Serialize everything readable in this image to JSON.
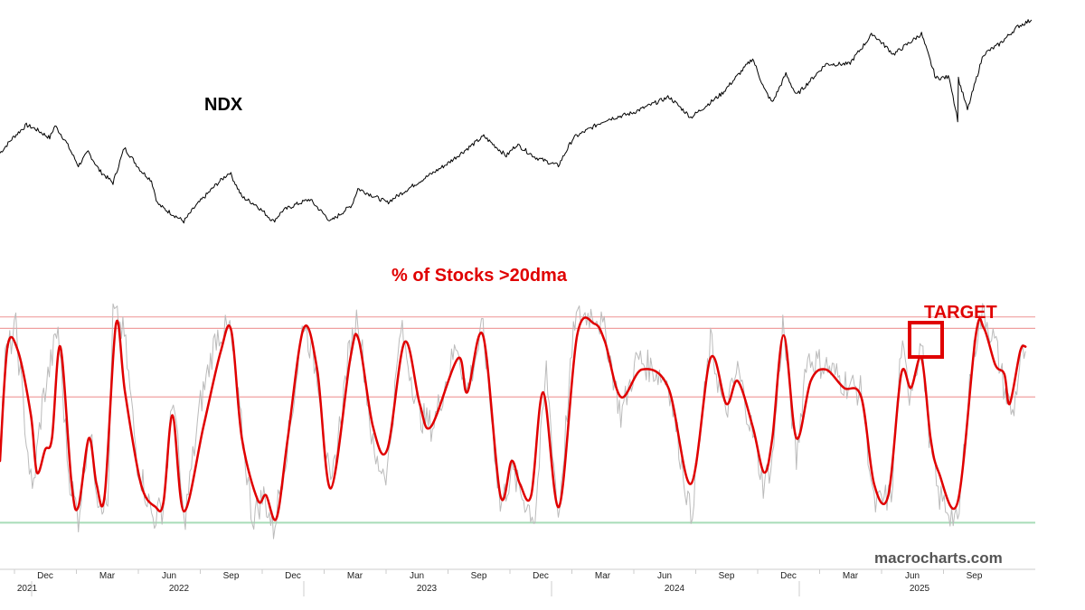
{
  "watermark": "macrocharts.com",
  "chart_data": [
    {
      "type": "line",
      "title": "NDX",
      "x_range": [
        "2021-10-15",
        "2025-07-20"
      ],
      "series": [
        {
          "name": "NDX",
          "color": "#000000",
          "points": [
            [
              "2021-10-15",
              14870
            ],
            [
              "2021-11-01",
              15800
            ],
            [
              "2021-11-19",
              16580
            ],
            [
              "2021-12-01",
              16350
            ],
            [
              "2021-12-20",
              15800
            ],
            [
              "2021-12-27",
              16550
            ],
            [
              "2022-01-10",
              15600
            ],
            [
              "2022-01-27",
              14100
            ],
            [
              "2022-02-09",
              14950
            ],
            [
              "2022-02-24",
              13800
            ],
            [
              "2022-03-14",
              13050
            ],
            [
              "2022-03-29",
              15200
            ],
            [
              "2022-04-20",
              13800
            ],
            [
              "2022-05-04",
              13200
            ],
            [
              "2022-05-12",
              11800
            ],
            [
              "2022-05-20",
              11500
            ],
            [
              "2022-06-16",
              10700
            ],
            [
              "2022-07-01",
              11600
            ],
            [
              "2022-07-29",
              12950
            ],
            [
              "2022-08-16",
              13700
            ],
            [
              "2022-09-01",
              12200
            ],
            [
              "2022-09-20",
              11700
            ],
            [
              "2022-10-13",
              10700
            ],
            [
              "2022-10-25",
              11350
            ],
            [
              "2022-11-10",
              11700
            ],
            [
              "2022-11-30",
              12050
            ],
            [
              "2022-12-28",
              10700
            ],
            [
              "2023-01-25",
              11700
            ],
            [
              "2023-02-02",
              12700
            ],
            [
              "2023-03-13",
              11850
            ],
            [
              "2023-04-20",
              13000
            ],
            [
              "2023-05-31",
              14200
            ],
            [
              "2023-07-19",
              15900
            ],
            [
              "2023-08-18",
              14700
            ],
            [
              "2023-09-01",
              15400
            ],
            [
              "2023-09-26",
              14600
            ],
            [
              "2023-10-26",
              14100
            ],
            [
              "2023-11-15",
              15800
            ],
            [
              "2023-12-28",
              16900
            ],
            [
              "2024-01-31",
              17300
            ],
            [
              "2024-03-21",
              18300
            ],
            [
              "2024-04-19",
              17050
            ],
            [
              "2024-05-30",
              18500
            ],
            [
              "2024-07-10",
              20650
            ],
            [
              "2024-07-25",
              18800
            ],
            [
              "2024-08-05",
              17950
            ],
            [
              "2024-08-23",
              19700
            ],
            [
              "2024-09-06",
              18400
            ],
            [
              "2024-10-15",
              20300
            ],
            [
              "2024-11-15",
              20300
            ],
            [
              "2024-12-16",
              22150
            ],
            [
              "2025-01-13",
              20900
            ],
            [
              "2025-02-19",
              22150
            ],
            [
              "2025-03-10",
              19450
            ],
            [
              "2025-03-28",
              19500
            ],
            [
              "2025-04-08",
              16900
            ],
            [
              "2025-04-09",
              19400
            ],
            [
              "2025-04-21",
              17500
            ],
            [
              "2025-05-12",
              20900
            ],
            [
              "2025-06-02",
              21500
            ],
            [
              "2025-06-27",
              22600
            ],
            [
              "2025-07-15",
              23000
            ]
          ]
        }
      ]
    },
    {
      "type": "line",
      "title": "% of Stocks >20dma",
      "x_range": [
        "2021-10-15",
        "2025-07-20"
      ],
      "y_range": [
        0,
        100
      ],
      "x_month_ticks": [
        "Dec",
        "Mar",
        "Jun",
        "Sep",
        "Dec",
        "Mar",
        "Jun",
        "Sep",
        "Dec",
        "Mar",
        "Jun",
        "Sep",
        "Dec",
        "Mar",
        "Jun",
        "Sep"
      ],
      "x_year_ticks": [
        "2021",
        "2022",
        "2023",
        "2024",
        "2025"
      ],
      "reference_lines": [
        {
          "value": 93,
          "color": "#f0a0a0"
        },
        {
          "value": 88,
          "color": "#f0a0a0"
        },
        {
          "value": 58,
          "color": "#f0a0a0"
        },
        {
          "value": 3,
          "color": "#a8dcb8"
        }
      ],
      "annotation": {
        "text": "TARGET",
        "color": "#e00000"
      },
      "series": [
        {
          "name": "smoothed",
          "color": "#e00000",
          "points": [
            [
              "2021-10-15",
              30
            ],
            [
              "2021-10-25",
              80
            ],
            [
              "2021-11-08",
              78
            ],
            [
              "2021-11-25",
              50
            ],
            [
              "2021-12-03",
              25
            ],
            [
              "2021-12-14",
              35
            ],
            [
              "2021-12-23",
              40
            ],
            [
              "2022-01-03",
              80
            ],
            [
              "2022-01-18",
              20
            ],
            [
              "2022-01-27",
              10
            ],
            [
              "2022-02-10",
              40
            ],
            [
              "2022-02-20",
              20
            ],
            [
              "2022-03-03",
              15
            ],
            [
              "2022-03-18",
              90
            ],
            [
              "2022-03-30",
              60
            ],
            [
              "2022-04-20",
              20
            ],
            [
              "2022-05-09",
              10
            ],
            [
              "2022-05-20",
              12
            ],
            [
              "2022-06-01",
              50
            ],
            [
              "2022-06-16",
              8
            ],
            [
              "2022-07-12",
              45
            ],
            [
              "2022-08-04",
              78
            ],
            [
              "2022-08-18",
              87
            ],
            [
              "2022-09-01",
              40
            ],
            [
              "2022-09-22",
              13
            ],
            [
              "2022-10-03",
              15
            ],
            [
              "2022-10-17",
              5
            ],
            [
              "2022-11-01",
              40
            ],
            [
              "2022-11-22",
              88
            ],
            [
              "2022-12-10",
              70
            ],
            [
              "2022-12-28",
              18
            ],
            [
              "2023-01-23",
              75
            ],
            [
              "2023-02-03",
              83
            ],
            [
              "2023-02-22",
              45
            ],
            [
              "2023-03-13",
              35
            ],
            [
              "2023-04-05",
              82
            ],
            [
              "2023-04-25",
              55
            ],
            [
              "2023-05-10",
              45
            ],
            [
              "2023-06-15",
              75
            ],
            [
              "2023-06-27",
              60
            ],
            [
              "2023-07-18",
              85
            ],
            [
              "2023-08-10",
              15
            ],
            [
              "2023-08-25",
              30
            ],
            [
              "2023-09-05",
              20
            ],
            [
              "2023-09-20",
              15
            ],
            [
              "2023-10-06",
              60
            ],
            [
              "2023-10-27",
              10
            ],
            [
              "2023-11-20",
              85
            ],
            [
              "2023-12-13",
              90
            ],
            [
              "2023-12-27",
              82
            ],
            [
              "2024-01-17",
              58
            ],
            [
              "2024-02-14",
              70
            ],
            [
              "2024-03-20",
              62
            ],
            [
              "2024-04-19",
              20
            ],
            [
              "2024-05-15",
              75
            ],
            [
              "2024-06-05",
              55
            ],
            [
              "2024-06-20",
              65
            ],
            [
              "2024-07-10",
              45
            ],
            [
              "2024-07-25",
              25
            ],
            [
              "2024-08-05",
              40
            ],
            [
              "2024-08-20",
              85
            ],
            [
              "2024-09-06",
              40
            ],
            [
              "2024-09-25",
              65
            ],
            [
              "2024-10-15",
              70
            ],
            [
              "2024-11-08",
              62
            ],
            [
              "2024-12-01",
              58
            ],
            [
              "2024-12-18",
              20
            ],
            [
              "2025-01-06",
              15
            ],
            [
              "2025-01-23",
              68
            ],
            [
              "2025-02-05",
              62
            ],
            [
              "2025-02-19",
              75
            ],
            [
              "2025-03-03",
              40
            ],
            [
              "2025-03-14",
              25
            ],
            [
              "2025-04-08",
              12
            ],
            [
              "2025-05-02",
              85
            ],
            [
              "2025-05-13",
              88
            ],
            [
              "2025-05-28",
              72
            ],
            [
              "2025-06-09",
              68
            ],
            [
              "2025-06-16",
              55
            ],
            [
              "2025-06-30",
              78
            ],
            [
              "2025-07-07",
              80
            ]
          ]
        },
        {
          "name": "raw",
          "color": "#bbbbbb",
          "points": [
            [
              "2021-10-15",
              35
            ],
            [
              "2021-10-22",
              75
            ],
            [
              "2021-11-05",
              88
            ],
            [
              "2021-11-19",
              40
            ],
            [
              "2021-11-27",
              15
            ],
            [
              "2021-12-10",
              55
            ],
            [
              "2021-12-31",
              88
            ],
            [
              "2022-01-14",
              25
            ],
            [
              "2022-01-27",
              5
            ],
            [
              "2022-02-10",
              45
            ],
            [
              "2022-02-22",
              15
            ],
            [
              "2022-03-07",
              10
            ],
            [
              "2022-03-14",
              95
            ],
            [
              "2022-03-29",
              85
            ],
            [
              "2022-04-15",
              30
            ],
            [
              "2022-05-06",
              5
            ],
            [
              "2022-05-20",
              10
            ],
            [
              "2022-06-02",
              60
            ],
            [
              "2022-06-16",
              2
            ],
            [
              "2022-07-08",
              55
            ],
            [
              "2022-07-29",
              85
            ],
            [
              "2022-08-16",
              88
            ],
            [
              "2022-09-02",
              40
            ],
            [
              "2022-09-15",
              5
            ],
            [
              "2022-09-30",
              15
            ],
            [
              "2022-10-13",
              0
            ],
            [
              "2022-11-04",
              45
            ],
            [
              "2022-11-22",
              92
            ],
            [
              "2022-12-12",
              65
            ],
            [
              "2022-12-28",
              15
            ],
            [
              "2023-01-20",
              75
            ],
            [
              "2023-02-02",
              95
            ],
            [
              "2023-02-24",
              30
            ],
            [
              "2023-03-13",
              25
            ],
            [
              "2023-03-31",
              88
            ],
            [
              "2023-04-25",
              50
            ],
            [
              "2023-05-12",
              45
            ],
            [
              "2023-06-14",
              82
            ],
            [
              "2023-06-26",
              60
            ],
            [
              "2023-07-18",
              88
            ],
            [
              "2023-08-10",
              10
            ],
            [
              "2023-08-25",
              25
            ],
            [
              "2023-09-08",
              15
            ],
            [
              "2023-09-25",
              5
            ],
            [
              "2023-10-10",
              70
            ],
            [
              "2023-10-26",
              5
            ],
            [
              "2023-11-17",
              92
            ],
            [
              "2023-12-14",
              95
            ],
            [
              "2023-12-28",
              85
            ],
            [
              "2024-01-17",
              50
            ],
            [
              "2024-02-08",
              75
            ],
            [
              "2024-03-20",
              65
            ],
            [
              "2024-04-19",
              5
            ],
            [
              "2024-05-15",
              82
            ],
            [
              "2024-06-03",
              50
            ],
            [
              "2024-06-20",
              70
            ],
            [
              "2024-07-10",
              42
            ],
            [
              "2024-07-24",
              20
            ],
            [
              "2024-08-05",
              30
            ],
            [
              "2024-08-19",
              90
            ],
            [
              "2024-09-06",
              30
            ],
            [
              "2024-09-19",
              75
            ],
            [
              "2024-10-14",
              72
            ],
            [
              "2024-11-06",
              65
            ],
            [
              "2024-12-02",
              60
            ],
            [
              "2024-12-18",
              10
            ],
            [
              "2025-01-10",
              15
            ],
            [
              "2025-01-23",
              80
            ],
            [
              "2025-02-03",
              60
            ],
            [
              "2025-02-19",
              82
            ],
            [
              "2025-03-03",
              35
            ],
            [
              "2025-03-13",
              15
            ],
            [
              "2025-04-04",
              5
            ],
            [
              "2025-04-08",
              0
            ],
            [
              "2025-04-24",
              65
            ],
            [
              "2025-05-05",
              88
            ],
            [
              "2025-05-13",
              95
            ],
            [
              "2025-05-29",
              80
            ],
            [
              "2025-06-10",
              60
            ],
            [
              "2025-06-20",
              50
            ],
            [
              "2025-07-01",
              75
            ],
            [
              "2025-07-07",
              78
            ]
          ]
        }
      ]
    }
  ]
}
